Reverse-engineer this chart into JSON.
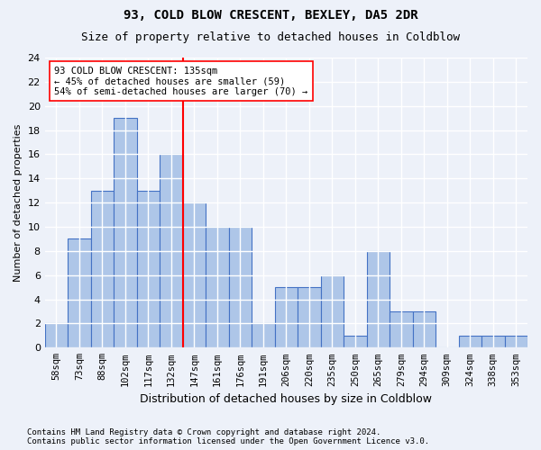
{
  "title1": "93, COLD BLOW CRESCENT, BEXLEY, DA5 2DR",
  "title2": "Size of property relative to detached houses in Coldblow",
  "xlabel": "Distribution of detached houses by size in Coldblow",
  "ylabel": "Number of detached properties",
  "footnote": "Contains HM Land Registry data © Crown copyright and database right 2024.\nContains public sector information licensed under the Open Government Licence v3.0.",
  "categories": [
    "58sqm",
    "73sqm",
    "88sqm",
    "102sqm",
    "117sqm",
    "132sqm",
    "147sqm",
    "161sqm",
    "176sqm",
    "191sqm",
    "206sqm",
    "220sqm",
    "235sqm",
    "250sqm",
    "265sqm",
    "279sqm",
    "294sqm",
    "309sqm",
    "324sqm",
    "338sqm",
    "353sqm"
  ],
  "values": [
    2,
    9,
    13,
    19,
    13,
    16,
    12,
    10,
    10,
    2,
    5,
    5,
    6,
    1,
    8,
    3,
    3,
    0,
    1,
    1,
    1
  ],
  "bar_color": "#aec6e8",
  "bar_edge_color": "#4472c4",
  "ref_line_x": 5.5,
  "ref_line_color": "red",
  "annotation_text": "93 COLD BLOW CRESCENT: 135sqm\n← 45% of detached houses are smaller (59)\n54% of semi-detached houses are larger (70) →",
  "annotation_box_color": "white",
  "annotation_box_edge_color": "red",
  "ylim": [
    0,
    24
  ],
  "yticks": [
    0,
    2,
    4,
    6,
    8,
    10,
    12,
    14,
    16,
    18,
    20,
    22,
    24
  ],
  "background_color": "#edf1f9",
  "grid_color": "white"
}
